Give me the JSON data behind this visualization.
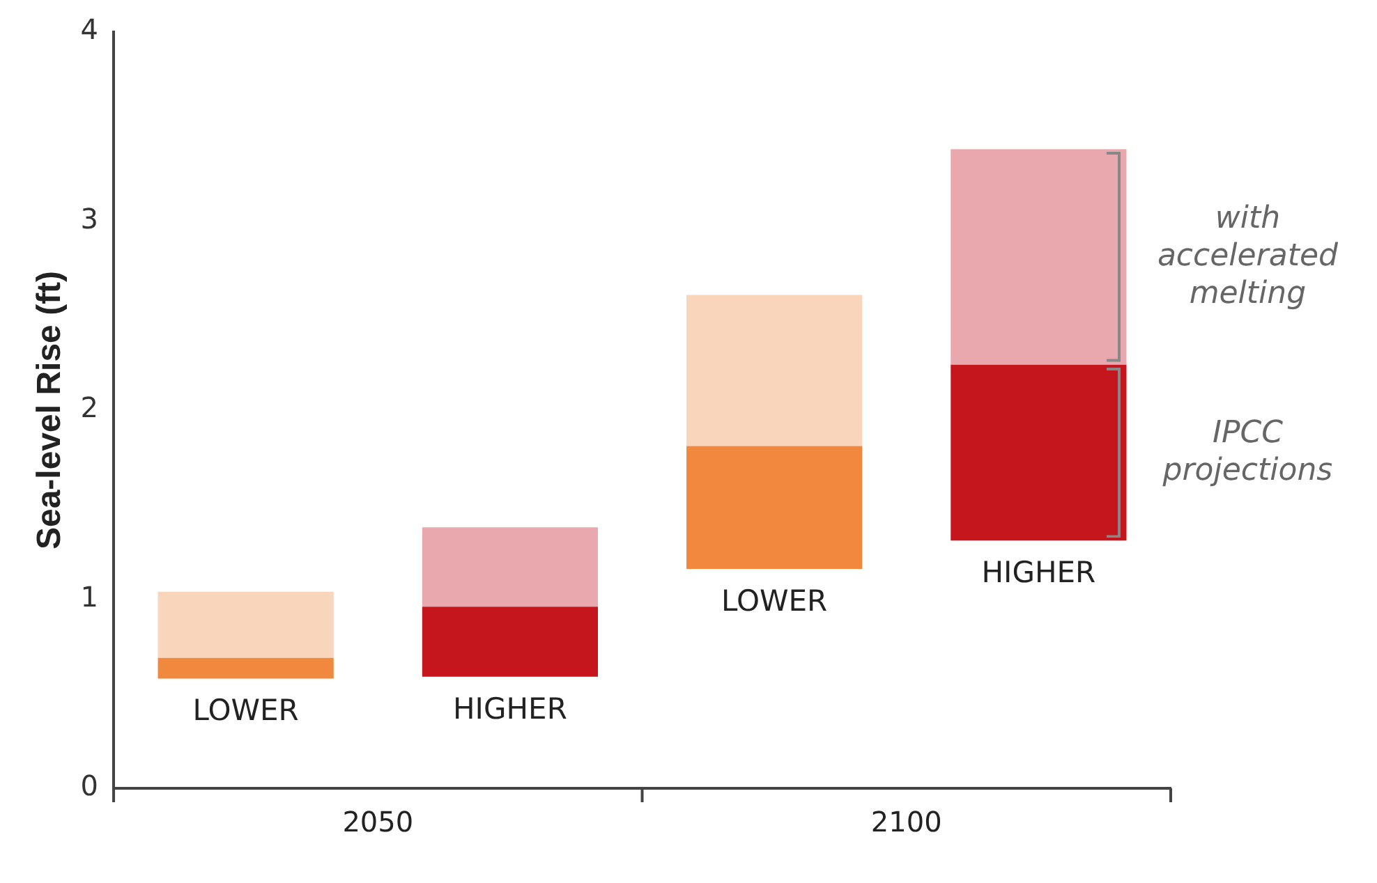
{
  "chart_data": {
    "type": "bar",
    "ylabel": "Sea-level Rise (ft)",
    "categories": [
      "LOWER",
      "HIGHER",
      "LOWER",
      "HIGHER"
    ],
    "series": [
      {
        "name": "IPCC projections",
        "colors": [
          "#f0893e",
          "#c4161c",
          "#f0893e",
          "#c4161c"
        ],
        "base": [
          0.58,
          0.59,
          1.16,
          1.31
        ],
        "values": [
          0.11,
          0.37,
          0.65,
          0.93
        ]
      },
      {
        "name": "with accelerated melting",
        "colors": [
          "#f9d5bb",
          "#e8a8ae",
          "#f9d5bb",
          "#e8a8ae"
        ],
        "base": [
          0.69,
          0.96,
          1.81,
          2.24
        ],
        "values": [
          0.35,
          0.42,
          0.8,
          1.14
        ]
      }
    ],
    "ylim": [
      0,
      4
    ],
    "yticks": [
      0,
      1,
      2,
      3,
      4
    ],
    "annotations": [
      "2050",
      "2100"
    ],
    "grid": false,
    "legend": false
  }
}
